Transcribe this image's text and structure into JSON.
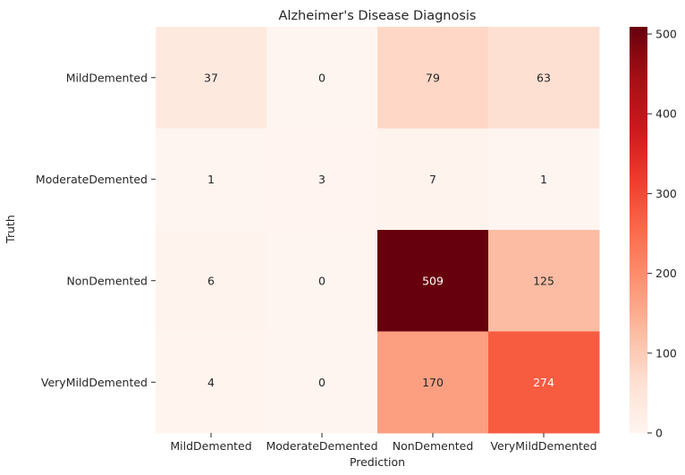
{
  "chart_data": {
    "type": "heatmap",
    "title": "Alzheimer's Disease Diagnosis",
    "xlabel": "Prediction",
    "ylabel": "Truth",
    "x_categories": [
      "MildDemented",
      "ModerateDemented",
      "NonDemented",
      "VeryMildDemented"
    ],
    "y_categories": [
      "MildDemented",
      "ModerateDemented",
      "NonDemented",
      "VeryMildDemented"
    ],
    "matrix": [
      [
        37,
        0,
        79,
        63
      ],
      [
        1,
        3,
        7,
        1
      ],
      [
        6,
        0,
        509,
        125
      ],
      [
        4,
        0,
        170,
        274
      ]
    ],
    "colormap": "Reds",
    "colorbar": {
      "min": 0,
      "max": 509,
      "ticks": [
        0,
        100,
        200,
        300,
        400,
        500
      ],
      "tick_labels": [
        "0",
        "100",
        "200",
        "300",
        "400",
        "500"
      ]
    },
    "annotations": true,
    "colors": {
      "light_text": "#ffffff",
      "dark_text": "#262626"
    }
  }
}
